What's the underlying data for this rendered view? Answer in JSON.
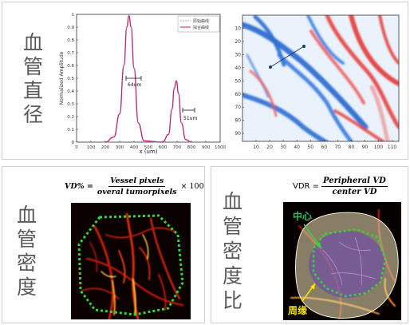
{
  "top": {
    "title_chars": [
      "血",
      "管",
      "直",
      "径"
    ],
    "plot": {
      "ylabel": "Normalized Amplitude",
      "xlabel": "x (um)",
      "xticks": [
        "0",
        "100",
        "200",
        "300",
        "400",
        "500",
        "600",
        "700",
        "800",
        "900",
        "1000"
      ],
      "yticks": [
        "0",
        "0.1",
        "0.2",
        "0.3",
        "0.4",
        "0.5",
        "0.6",
        "0.7",
        "0.8",
        "0.9",
        "1"
      ],
      "legend": [
        "原始曲线",
        "拟合曲线"
      ],
      "annotation_1": "64um",
      "annotation_2": "51um",
      "colors": {
        "raw": "#b39ddb",
        "fit": "#c2185b"
      }
    },
    "map": {
      "xticks": [
        "10",
        "20",
        "30",
        "40",
        "50",
        "60",
        "70",
        "80",
        "90",
        "100",
        "110"
      ],
      "yticks": [
        "10",
        "20",
        "30",
        "40",
        "50",
        "60",
        "70",
        "80",
        "90"
      ]
    }
  },
  "bottom_left": {
    "title_chars": [
      "血",
      "管",
      "密",
      "度"
    ],
    "formula": {
      "lhs": "VD% =",
      "numerator": "Vessel pixels",
      "denominator": "overal tumorpixels",
      "suffix": "× 100"
    }
  },
  "bottom_right": {
    "title_chars": [
      "血",
      "管",
      "密",
      "度",
      "比"
    ],
    "formula": {
      "lhs": "VDR =",
      "numerator": "Peripheral VD",
      "denominator": "center VD"
    },
    "label_center": "中心",
    "label_periphery": "周缘",
    "colors": {
      "center_label": "#22c55e",
      "periphery_label": "#f5e400"
    }
  },
  "chart_data": {
    "type": "line",
    "xlabel": "x (um)",
    "ylabel": "Normalized Amplitude",
    "xlim": [
      0,
      1000
    ],
    "ylim": [
      0,
      1
    ],
    "series": [
      {
        "name": "原始曲线",
        "x": [
          200,
          260,
          300,
          330,
          350,
          365,
          380,
          400,
          430,
          470,
          600,
          640,
          665,
          680,
          695,
          710,
          730,
          760,
          800
        ],
        "y": [
          0.0,
          0.04,
          0.22,
          0.6,
          0.9,
          0.99,
          0.9,
          0.58,
          0.15,
          0.01,
          0.0,
          0.06,
          0.26,
          0.42,
          0.48,
          0.38,
          0.15,
          0.02,
          0.0
        ]
      },
      {
        "name": "拟合曲线",
        "x": [
          200,
          260,
          300,
          330,
          350,
          365,
          380,
          400,
          430,
          470,
          600,
          640,
          665,
          680,
          695,
          710,
          730,
          760,
          800
        ],
        "y": [
          0.0,
          0.04,
          0.22,
          0.6,
          0.9,
          0.99,
          0.9,
          0.58,
          0.15,
          0.01,
          0.0,
          0.06,
          0.26,
          0.42,
          0.48,
          0.38,
          0.15,
          0.02,
          0.0
        ]
      }
    ],
    "annotations": [
      "64um",
      "51um"
    ]
  }
}
